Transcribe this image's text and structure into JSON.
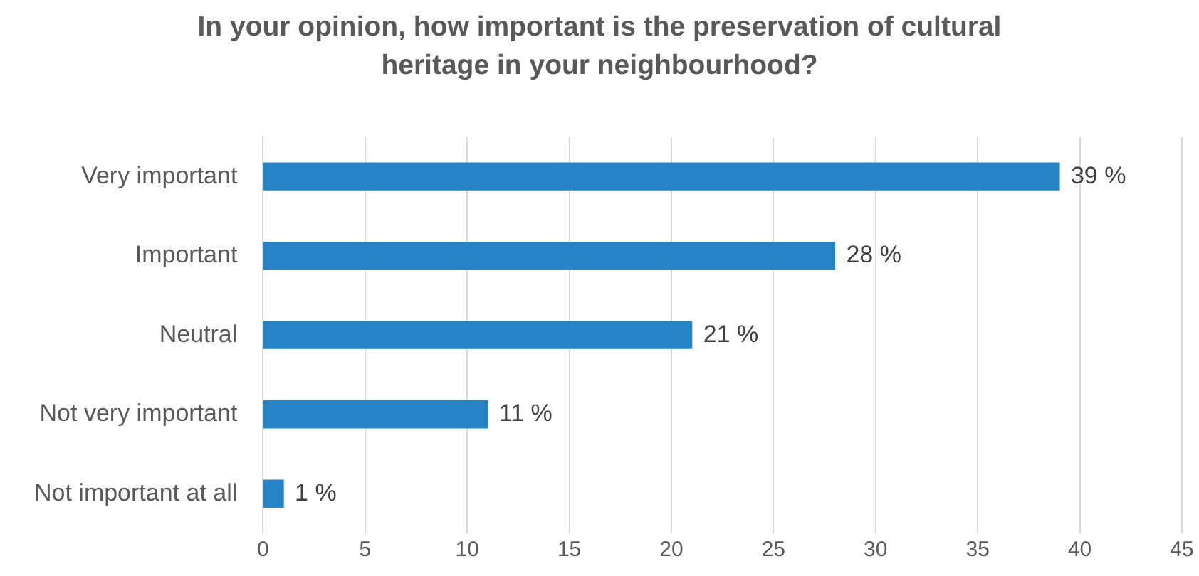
{
  "chart_data": {
    "type": "bar",
    "orientation": "horizontal",
    "title": "In your opinion, how important is the preservation of cultural heritage in your neighbourhood?",
    "categories": [
      "Very important",
      "Important",
      "Neutral",
      "Not very important",
      "Not important at all"
    ],
    "values": [
      39,
      28,
      21,
      11,
      1
    ],
    "value_labels": [
      "39 %",
      "28 %",
      "21 %",
      "11 %",
      "1 %"
    ],
    "color": "#2683c6",
    "xlim": [
      0,
      45
    ],
    "xticks": [
      0,
      5,
      10,
      15,
      20,
      25,
      30,
      35,
      40,
      45
    ],
    "grid": "x",
    "legend": false
  }
}
